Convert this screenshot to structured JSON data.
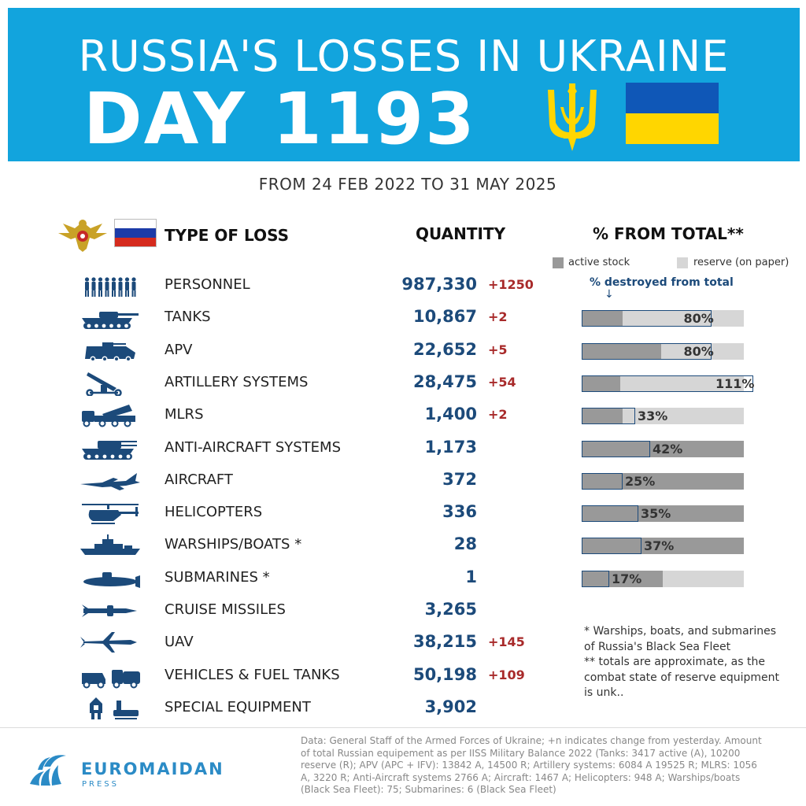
{
  "header": {
    "title": "RUSSIA'S LOSSES IN UKRAINE",
    "day": "DAY 1193",
    "subtitle": "FROM 24 FEB 2022 TO 31 MAY 2025"
  },
  "columns": {
    "type": "TYPE OF LOSS",
    "quantity": "QUANTITY",
    "percent": "% FROM TOTAL**"
  },
  "legend": {
    "active": "active stock",
    "reserve": "reserve (on paper)",
    "destroyed_note": "% destroyed from total",
    "arrow": "↓"
  },
  "colors": {
    "banner": "#12a4dd",
    "quantity_text": "#1c4a7a",
    "change_text": "#a82a2a",
    "active_bar": "#999999",
    "reserve_bar": "#d6d6d6",
    "destroyed_outline": "#1c4a7a"
  },
  "chart_data": {
    "type": "table",
    "title": "RUSSIA'S LOSSES IN UKRAINE",
    "rows": [
      {
        "label": "PERSONNEL",
        "quantity": "987,330",
        "change": "+1250",
        "icon": "soldiers-icon"
      },
      {
        "label": "TANKS",
        "quantity": "10,867",
        "change": "+2",
        "icon": "tank-icon",
        "percent": 80,
        "percent_label": "80%",
        "active_share": 0.25
      },
      {
        "label": "APV",
        "quantity": "22,652",
        "change": "+5",
        "icon": "apv-icon",
        "percent": 80,
        "percent_label": "80%",
        "active_share": 0.49
      },
      {
        "label": "ARTILLERY SYSTEMS",
        "quantity": "28,475",
        "change": "+54",
        "icon": "artillery-icon",
        "percent": 111,
        "percent_label": "111%",
        "active_share": 0.24
      },
      {
        "label": "MLRS",
        "quantity": "1,400",
        "change": "+2",
        "icon": "mlrs-icon",
        "percent": 33,
        "percent_label": "33%",
        "active_share": 0.25
      },
      {
        "label": "ANTI-AIRCRAFT SYSTEMS",
        "quantity": "1,173",
        "change": "",
        "icon": "anti-aircraft-icon",
        "percent": 42,
        "percent_label": "42%",
        "active_share": 1.0
      },
      {
        "label": "AIRCRAFT",
        "quantity": "372",
        "change": "",
        "icon": "aircraft-icon",
        "percent": 25,
        "percent_label": "25%",
        "active_share": 1.0
      },
      {
        "label": "HELICOPTERS",
        "quantity": "336",
        "change": "",
        "icon": "helicopter-icon",
        "percent": 35,
        "percent_label": "35%",
        "active_share": 1.0
      },
      {
        "label": "WARSHIPS/BOATS *",
        "quantity": "28",
        "change": "",
        "icon": "warship-icon",
        "percent": 37,
        "percent_label": "37%",
        "active_share": 1.0
      },
      {
        "label": "SUBMARINES *",
        "quantity": "1",
        "change": "",
        "icon": "submarine-icon",
        "percent": 17,
        "percent_label": "17%",
        "active_share": 0.5
      },
      {
        "label": "CRUISE MISSILES",
        "quantity": "3,265",
        "change": "",
        "icon": "missile-icon"
      },
      {
        "label": "UAV",
        "quantity": "38,215",
        "change": "+145",
        "icon": "uav-icon"
      },
      {
        "label": "VEHICLES & FUEL TANKS",
        "quantity": "50,198",
        "change": "+109",
        "icon": "vehicles-icon"
      },
      {
        "label": "SPECIAL EQUIPMENT",
        "quantity": "3,902",
        "change": "",
        "icon": "special-equipment-icon"
      }
    ]
  },
  "footnotes": [
    "* Warships, boats, and submarines of Russia's Black Sea Fleet",
    "** totals are approximate, as the combat state of reserve equipment is unk.."
  ],
  "footer": {
    "brand": "EUROMAIDAN",
    "brand_sub": "PRESS",
    "source": "Data: General Staff of the Armed Forces of Ukraine; +n indicates change from yesterday. Amount of total Russian equipement as per IISS Military Balance 2022 (Tanks: 3417 active (A), 10200 reserve (R); APV (APC + IFV): 13842 A, 14500 R; Artillery systems: 6084 A 19525 R; MLRS: 1056 A, 3220 R; Anti-Aircraft systems 2766 A; Aircraft: 1467 A; Helicopters: 948 A; Warships/boats (Black Sea Fleet): 75; Submarines: 6 (Black Sea Fleet)"
  }
}
